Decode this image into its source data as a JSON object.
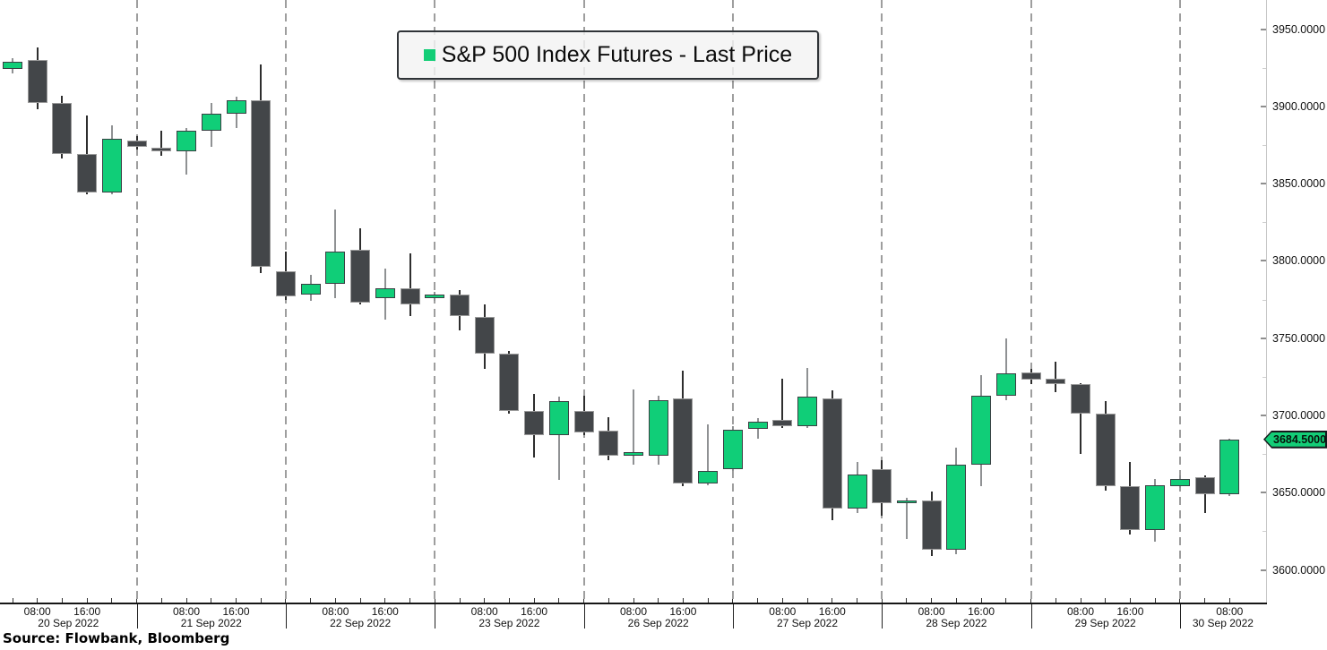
{
  "legend": {
    "label": "S&P 500 Index Futures - Last Price",
    "marker_color": "#13ce77"
  },
  "source": {
    "text": "Source: Flowbank, Bloomberg"
  },
  "colors": {
    "up_candle": "#10ce78",
    "down_candle": "#434649",
    "up_wick": "#8f9193",
    "down_wick": "#2e2e2e",
    "grid_dash": "#9e9e9e",
    "axis_line": "#161616",
    "price_tag_bg": "#13ce77",
    "price_tag_border": "#15181b",
    "background": "#ffffff"
  },
  "chart_data": {
    "type": "candlestick",
    "title": "S&P 500 Index Futures - Last Price",
    "bar_interval": "4 hours",
    "legend_position": "top-center",
    "grid": "vertical-dashed-day-separators",
    "last_price": 3684.5,
    "last_price_label": "3684.5000",
    "y_axis": {
      "position": "right",
      "range": [
        3578.9,
        3968.8
      ],
      "tick_values": [
        3950,
        3900,
        3850,
        3800,
        3750,
        3700,
        3650,
        3600
      ],
      "tick_labels": [
        "3950.0000",
        "3900.0000",
        "3850.0000",
        "3800.0000",
        "3750.0000",
        "3700.0000",
        "3650.0000",
        "3600.0000"
      ],
      "minor_tick_step": 25
    },
    "x_axis": {
      "dates": [
        "20 Sep 2022",
        "21 Sep 2022",
        "22 Sep 2022",
        "23 Sep 2022",
        "26 Sep 2022",
        "27 Sep 2022",
        "28 Sep 2022",
        "29 Sep 2022",
        "30 Sep 2022"
      ],
      "time_tick_labels": [
        "08:00",
        "16:00"
      ]
    },
    "candle_fields": [
      "date",
      "time",
      "open",
      "high",
      "low",
      "close"
    ],
    "candles": [
      [
        "20 Sep 2022",
        "04:00",
        3924,
        3931,
        3921,
        3929
      ],
      [
        "20 Sep 2022",
        "08:00",
        3930,
        3938,
        3898,
        3902
      ],
      [
        "20 Sep 2022",
        "12:00",
        3902,
        3907,
        3866,
        3869
      ],
      [
        "20 Sep 2022",
        "16:00",
        3869,
        3894,
        3843,
        3844
      ],
      [
        "20 Sep 2022",
        "20:00",
        3844,
        3888,
        3843,
        3879
      ],
      [
        "21 Sep 2022",
        "00:00",
        3878,
        3881,
        3872,
        3874
      ],
      [
        "21 Sep 2022",
        "04:00",
        3873,
        3884,
        3868,
        3871
      ],
      [
        "21 Sep 2022",
        "08:00",
        3871,
        3886,
        3856,
        3884
      ],
      [
        "21 Sep 2022",
        "12:00",
        3884,
        3902,
        3874,
        3895
      ],
      [
        "21 Sep 2022",
        "16:00",
        3895,
        3906,
        3886,
        3904
      ],
      [
        "21 Sep 2022",
        "20:00",
        3904,
        3927,
        3792,
        3796
      ],
      [
        "22 Sep 2022",
        "00:00",
        3793,
        3806,
        3775,
        3777
      ],
      [
        "22 Sep 2022",
        "04:00",
        3778,
        3791,
        3774,
        3785
      ],
      [
        "22 Sep 2022",
        "08:00",
        3785,
        3833,
        3776,
        3806
      ],
      [
        "22 Sep 2022",
        "12:00",
        3807,
        3821,
        3772,
        3773
      ],
      [
        "22 Sep 2022",
        "16:00",
        3776,
        3795,
        3762,
        3782
      ],
      [
        "22 Sep 2022",
        "20:00",
        3782,
        3805,
        3764,
        3772
      ],
      [
        "23 Sep 2022",
        "00:00",
        3776,
        3780,
        3774,
        3778
      ],
      [
        "23 Sep 2022",
        "04:00",
        3778,
        3781,
        3755,
        3764
      ],
      [
        "23 Sep 2022",
        "08:00",
        3764,
        3772,
        3730,
        3740
      ],
      [
        "23 Sep 2022",
        "12:00",
        3740,
        3742,
        3701,
        3703
      ],
      [
        "23 Sep 2022",
        "16:00",
        3703,
        3714,
        3673,
        3687
      ],
      [
        "23 Sep 2022",
        "20:00",
        3687,
        3712,
        3658,
        3709
      ],
      [
        "26 Sep 2022",
        "00:00",
        3703,
        3713,
        3687,
        3689
      ],
      [
        "26 Sep 2022",
        "04:00",
        3690,
        3699,
        3671,
        3674
      ],
      [
        "26 Sep 2022",
        "08:00",
        3674,
        3717,
        3668,
        3676
      ],
      [
        "26 Sep 2022",
        "12:00",
        3674,
        3713,
        3668,
        3710
      ],
      [
        "26 Sep 2022",
        "16:00",
        3711,
        3729,
        3654,
        3656
      ],
      [
        "26 Sep 2022",
        "20:00",
        3656,
        3694,
        3655,
        3664
      ],
      [
        "27 Sep 2022",
        "00:00",
        3665,
        3693,
        3664,
        3691
      ],
      [
        "27 Sep 2022",
        "04:00",
        3691,
        3698,
        3685,
        3696
      ],
      [
        "27 Sep 2022",
        "08:00",
        3697,
        3724,
        3692,
        3693
      ],
      [
        "27 Sep 2022",
        "12:00",
        3693,
        3731,
        3692,
        3712
      ],
      [
        "27 Sep 2022",
        "16:00",
        3711,
        3716,
        3632,
        3640
      ],
      [
        "27 Sep 2022",
        "20:00",
        3640,
        3670,
        3637,
        3662
      ],
      [
        "28 Sep 2022",
        "00:00",
        3665,
        3671,
        3635,
        3643
      ],
      [
        "28 Sep 2022",
        "04:00",
        3643,
        3647,
        3620,
        3645
      ],
      [
        "28 Sep 2022",
        "08:00",
        3645,
        3651,
        3609,
        3613
      ],
      [
        "28 Sep 2022",
        "12:00",
        3613,
        3679,
        3610,
        3668
      ],
      [
        "28 Sep 2022",
        "16:00",
        3668,
        3726,
        3654,
        3713
      ],
      [
        "28 Sep 2022",
        "20:00",
        3713,
        3750,
        3710,
        3727
      ],
      [
        "29 Sep 2022",
        "00:00",
        3728,
        3730,
        3720,
        3723
      ],
      [
        "29 Sep 2022",
        "04:00",
        3724,
        3735,
        3715,
        3720
      ],
      [
        "29 Sep 2022",
        "08:00",
        3720,
        3721,
        3675,
        3701
      ],
      [
        "29 Sep 2022",
        "12:00",
        3701,
        3709,
        3651,
        3654
      ],
      [
        "29 Sep 2022",
        "16:00",
        3654,
        3670,
        3623,
        3626
      ],
      [
        "29 Sep 2022",
        "20:00",
        3626,
        3659,
        3618,
        3655
      ],
      [
        "30 Sep 2022",
        "00:00",
        3654,
        3661,
        3653,
        3659
      ],
      [
        "30 Sep 2022",
        "04:00",
        3660,
        3661,
        3637,
        3649
      ],
      [
        "30 Sep 2022",
        "08:00",
        3649,
        3685,
        3648,
        3684.5
      ]
    ]
  }
}
